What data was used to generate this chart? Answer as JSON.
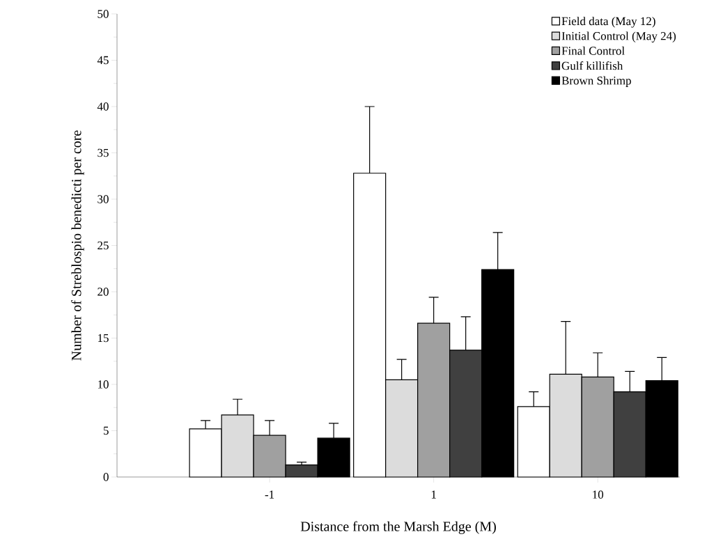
{
  "chart_data": {
    "type": "bar",
    "xlabel": "Distance from the Marsh Edge (M)",
    "ylabel": "Number of Streblospio benedicti per core",
    "categories": [
      "-1",
      "1",
      "10"
    ],
    "series": [
      {
        "name": "Field data (May 12)",
        "color": "#ffffff",
        "values": [
          5.2,
          32.8,
          7.6
        ],
        "errors": [
          [
            5.2,
            6.1
          ],
          [
            32.8,
            40
          ],
          [
            7.6,
            9.2
          ]
        ]
      },
      {
        "name": "Initial Control  (May 24)",
        "color": "#dcdcdc",
        "values": [
          6.7,
          10.5,
          11.1
        ],
        "errors": [
          [
            6.7,
            8.4
          ],
          [
            10.5,
            12.7
          ],
          [
            11.1,
            16.8
          ]
        ]
      },
      {
        "name": "Final Control",
        "color": "#a0a0a0",
        "values": [
          4.5,
          16.6,
          10.8
        ],
        "errors": [
          [
            4.5,
            6.1
          ],
          [
            16.6,
            19.4
          ],
          [
            10.8,
            13.4
          ]
        ]
      },
      {
        "name": "Gulf killifish",
        "color": "#404040",
        "values": [
          1.3,
          13.7,
          9.2
        ],
        "errors": [
          [
            1.3,
            1.6
          ],
          [
            13.7,
            17.3
          ],
          [
            9.2,
            11.4
          ]
        ]
      },
      {
        "name": "Brown Shrimp",
        "color": "#000000",
        "values": [
          4.2,
          22.4,
          10.4
        ],
        "errors": [
          [
            4.2,
            5.8
          ],
          [
            22.4,
            26.4
          ],
          [
            10.4,
            12.9
          ]
        ]
      }
    ],
    "ylim": [
      0,
      50
    ],
    "yticks": [
      0,
      5,
      10,
      15,
      20,
      25,
      30,
      35,
      40,
      45,
      50
    ],
    "grid": false,
    "legend": "top right"
  }
}
